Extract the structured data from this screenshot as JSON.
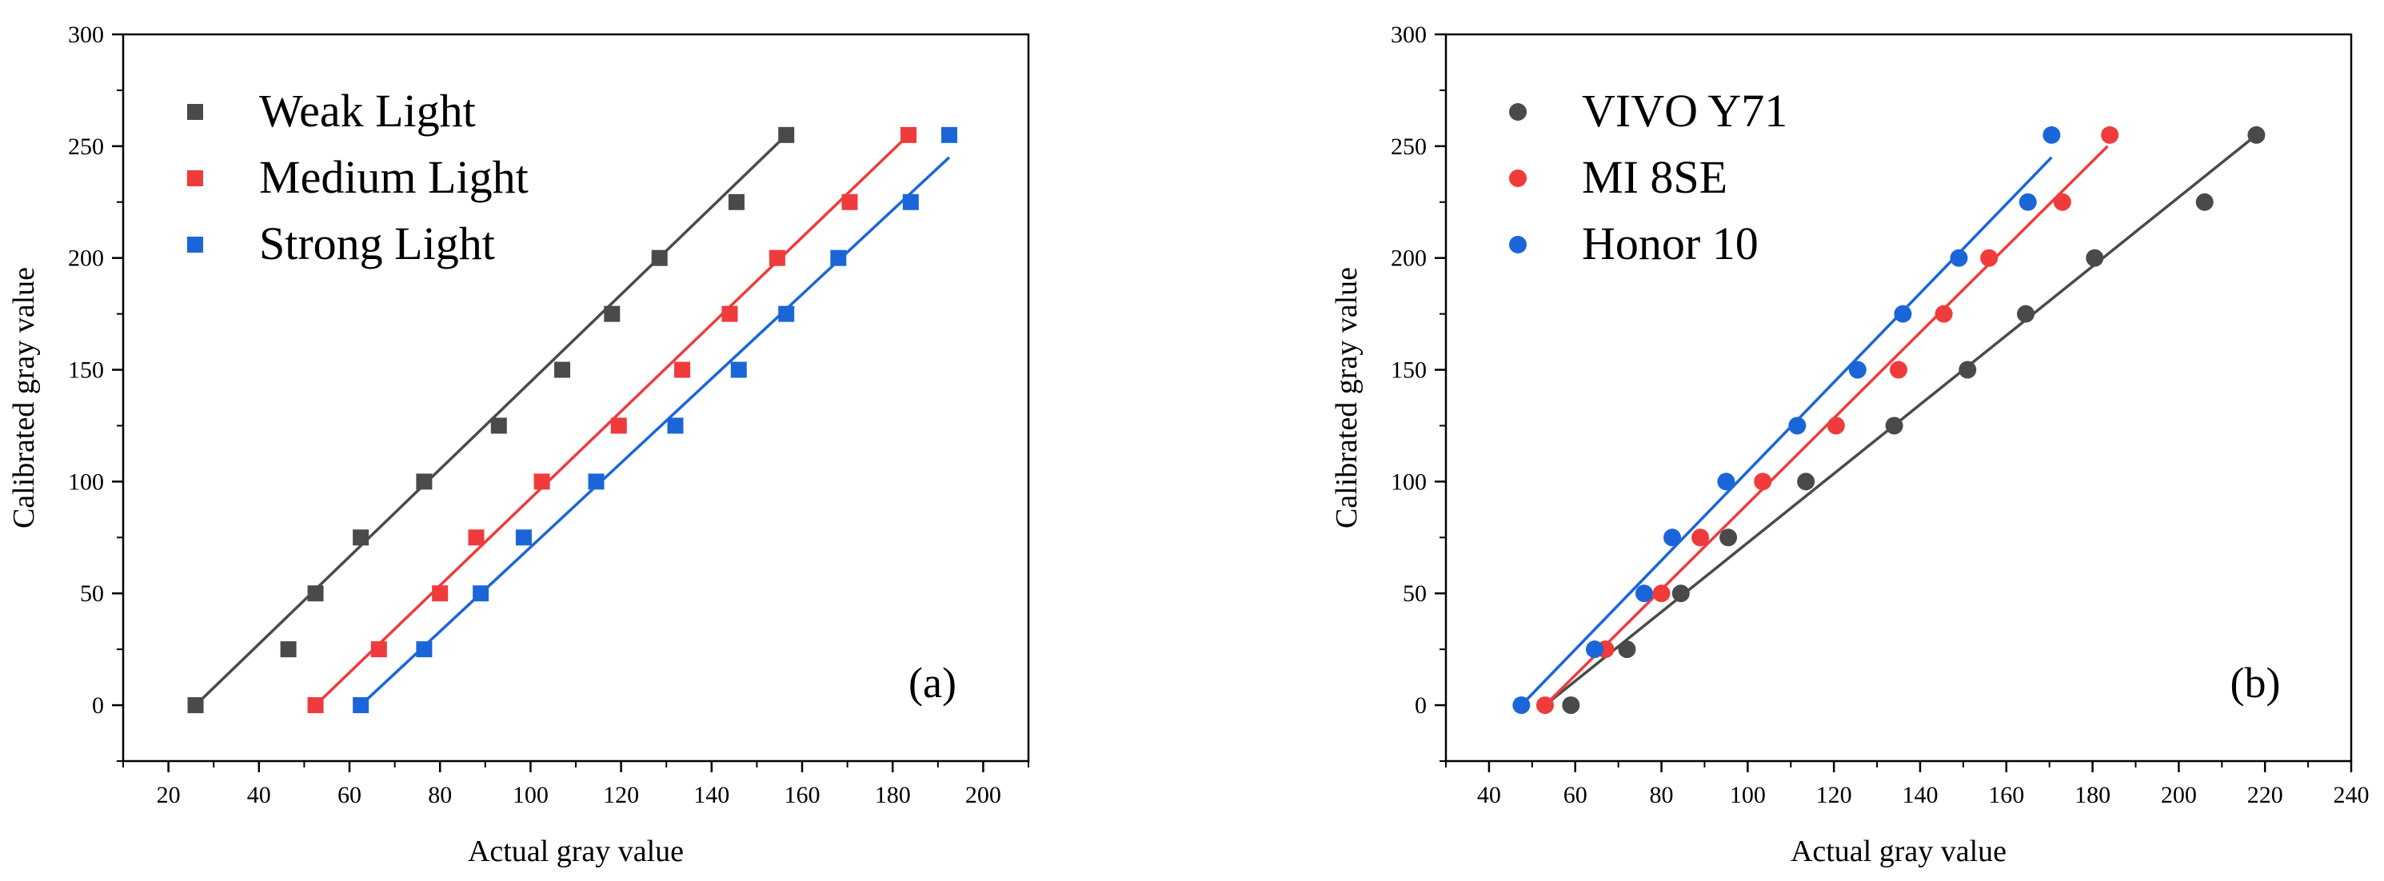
{
  "chart_data": [
    {
      "type": "scatter",
      "panel_label": "(a)",
      "xlabel": "Actual gray value",
      "ylabel": "Calibrated gray value",
      "xlim": [
        10,
        210
      ],
      "ylim": [
        -25,
        300
      ],
      "xticks": [
        20,
        40,
        60,
        80,
        100,
        120,
        140,
        160,
        180,
        200
      ],
      "yticks": [
        0,
        50,
        100,
        150,
        200,
        250,
        300
      ],
      "marker": "square",
      "legend_position": "top-left",
      "series": [
        {
          "name": "Weak Light",
          "color": "#4a4a4a",
          "x": [
            26,
            46.5,
            52.5,
            62.5,
            76.5,
            93,
            107,
            118,
            128.5,
            145.5,
            156.5
          ],
          "y": [
            0,
            25,
            50,
            75,
            100,
            125,
            150,
            175,
            200,
            225,
            255
          ],
          "fit": {
            "x": [
              26,
              156.5
            ],
            "y": [
              0,
              255
            ]
          }
        },
        {
          "name": "Medium Light",
          "color": "#ef3b3b",
          "x": [
            52.5,
            66.5,
            80,
            88,
            102.5,
            119.5,
            133.5,
            144,
            154.5,
            170.5,
            183.5
          ],
          "y": [
            0,
            25,
            50,
            75,
            100,
            125,
            150,
            175,
            200,
            225,
            255
          ],
          "fit": {
            "x": [
              52.5,
              183.5
            ],
            "y": [
              0,
              255
            ]
          }
        },
        {
          "name": "Strong Light",
          "color": "#1a66d9",
          "x": [
            62.5,
            76.5,
            89,
            98.5,
            114.5,
            132,
            146,
            156.5,
            168,
            184,
            192.5
          ],
          "y": [
            0,
            25,
            50,
            75,
            100,
            125,
            150,
            175,
            200,
            225,
            255
          ],
          "fit": {
            "x": [
              62.5,
              192.5
            ],
            "y": [
              0,
              245
            ]
          }
        }
      ]
    },
    {
      "type": "scatter",
      "panel_label": "(b)",
      "xlabel": "Actual gray value",
      "ylabel": "Calibrated gray value",
      "xlim": [
        30,
        240
      ],
      "ylim": [
        -25,
        300
      ],
      "xticks": [
        40,
        60,
        80,
        100,
        120,
        140,
        160,
        180,
        200,
        220,
        240
      ],
      "yticks": [
        0,
        50,
        100,
        150,
        200,
        250,
        300
      ],
      "marker": "circle",
      "legend_position": "top-left",
      "series": [
        {
          "name": "VIVO Y71",
          "color": "#4a4a4a",
          "x": [
            59,
            72,
            84.5,
            95.5,
            113.5,
            134,
            151,
            164.5,
            180.5,
            206,
            218
          ],
          "y": [
            0,
            25,
            50,
            75,
            100,
            125,
            150,
            175,
            200,
            225,
            255
          ],
          "fit": {
            "x": [
              53,
              218
            ],
            "y": [
              0,
              255
            ]
          }
        },
        {
          "name": "MI 8SE",
          "color": "#ef3b3b",
          "x": [
            53,
            67,
            80,
            89,
            103.5,
            120.5,
            135,
            145.5,
            156,
            173,
            184
          ],
          "y": [
            0,
            25,
            50,
            75,
            100,
            125,
            150,
            175,
            200,
            225,
            255
          ],
          "fit": {
            "x": [
              53,
              183.5
            ],
            "y": [
              0,
              250
            ]
          }
        },
        {
          "name": "Honor 10",
          "color": "#1a66d9",
          "x": [
            47.5,
            64.5,
            76,
            82.5,
            95,
            111.5,
            125.5,
            136,
            149,
            165,
            170.5
          ],
          "y": [
            0,
            25,
            50,
            75,
            100,
            125,
            150,
            175,
            200,
            225,
            255
          ],
          "fit": {
            "x": [
              47.5,
              170.5
            ],
            "y": [
              0,
              245
            ]
          }
        }
      ]
    }
  ]
}
